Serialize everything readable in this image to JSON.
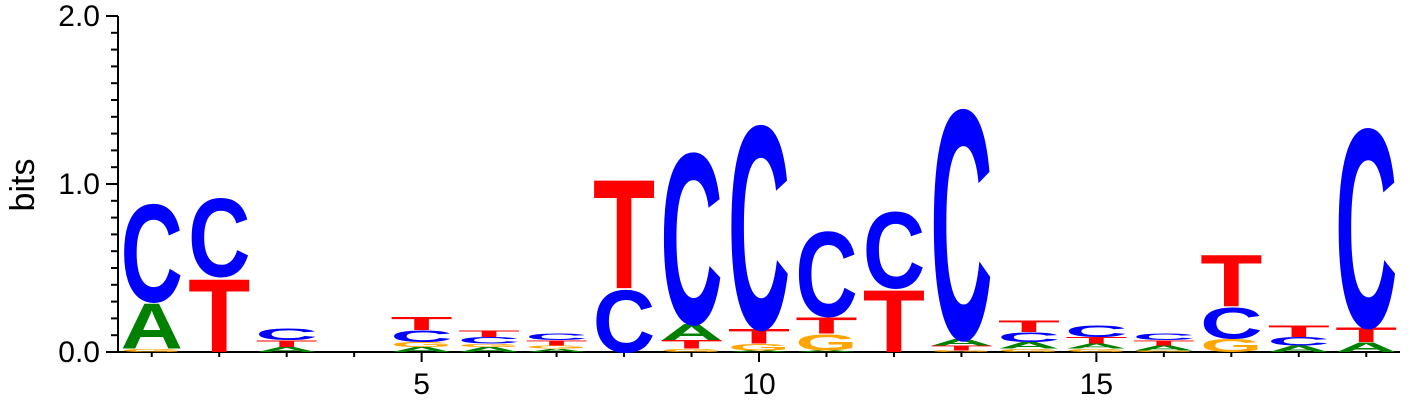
{
  "chart_data": {
    "type": "sequence-logo",
    "ylabel": "bits",
    "ylim": [
      0,
      2.0
    ],
    "xlim": [
      0.5,
      19.5
    ],
    "y_ticks": [
      "0.0",
      "1.0",
      "2.0"
    ],
    "y_tick_values": [
      0,
      1.0,
      2.0
    ],
    "x_ticks": [
      "5",
      "10",
      "15"
    ],
    "x_tick_values": [
      5,
      10,
      15
    ],
    "colors": {
      "A": "#008000",
      "C": "#0000ff",
      "G": "#ffa500",
      "T": "#ff0000"
    },
    "positions": [
      {
        "pos": 1,
        "letters": [
          {
            "base": "G",
            "height": 0.02
          },
          {
            "base": "A",
            "height": 0.28
          },
          {
            "base": "C",
            "height": 0.6
          }
        ]
      },
      {
        "pos": 2,
        "letters": [
          {
            "base": "T",
            "height": 0.45
          },
          {
            "base": "C",
            "height": 0.48
          }
        ]
      },
      {
        "pos": 3,
        "letters": [
          {
            "base": "A",
            "height": 0.03
          },
          {
            "base": "T",
            "height": 0.04
          },
          {
            "base": "C",
            "height": 0.07
          }
        ]
      },
      {
        "pos": 5,
        "letters": [
          {
            "base": "A",
            "height": 0.03
          },
          {
            "base": "G",
            "height": 0.03
          },
          {
            "base": "C",
            "height": 0.07
          },
          {
            "base": "T",
            "height": 0.08
          }
        ]
      },
      {
        "pos": 6,
        "letters": [
          {
            "base": "A",
            "height": 0.03
          },
          {
            "base": "G",
            "height": 0.02
          },
          {
            "base": "C",
            "height": 0.04
          },
          {
            "base": "T",
            "height": 0.04
          }
        ]
      },
      {
        "pos": 7,
        "letters": [
          {
            "base": "A",
            "height": 0.02
          },
          {
            "base": "G",
            "height": 0.02
          },
          {
            "base": "T",
            "height": 0.03
          },
          {
            "base": "C",
            "height": 0.04
          }
        ]
      },
      {
        "pos": 8,
        "letters": [
          {
            "base": "C",
            "height": 0.38
          },
          {
            "base": "T",
            "height": 0.67
          }
        ]
      },
      {
        "pos": 9,
        "letters": [
          {
            "base": "G",
            "height": 0.02
          },
          {
            "base": "T",
            "height": 0.05
          },
          {
            "base": "A",
            "height": 0.1
          },
          {
            "base": "C",
            "height": 1.05
          }
        ]
      },
      {
        "pos": 10,
        "letters": [
          {
            "base": "A",
            "height": 0.01
          },
          {
            "base": "G",
            "height": 0.04
          },
          {
            "base": "T",
            "height": 0.09
          },
          {
            "base": "C",
            "height": 1.25
          }
        ]
      },
      {
        "pos": 11,
        "letters": [
          {
            "base": "A",
            "height": 0.01
          },
          {
            "base": "G",
            "height": 0.1
          },
          {
            "base": "T",
            "height": 0.1
          },
          {
            "base": "C",
            "height": 0.52
          }
        ]
      },
      {
        "pos": 12,
        "letters": [
          {
            "base": "T",
            "height": 0.38
          },
          {
            "base": "C",
            "height": 0.47
          }
        ]
      },
      {
        "pos": 13,
        "letters": [
          {
            "base": "G",
            "height": 0.01
          },
          {
            "base": "T",
            "height": 0.03
          },
          {
            "base": "A",
            "height": 0.04
          },
          {
            "base": "C",
            "height": 1.41
          }
        ]
      },
      {
        "pos": 14,
        "letters": [
          {
            "base": "G",
            "height": 0.02
          },
          {
            "base": "A",
            "height": 0.04
          },
          {
            "base": "C",
            "height": 0.06
          },
          {
            "base": "T",
            "height": 0.07
          }
        ]
      },
      {
        "pos": 15,
        "letters": [
          {
            "base": "G",
            "height": 0.02
          },
          {
            "base": "A",
            "height": 0.03
          },
          {
            "base": "T",
            "height": 0.04
          },
          {
            "base": "C",
            "height": 0.07
          }
        ]
      },
      {
        "pos": 16,
        "letters": [
          {
            "base": "G",
            "height": 0.01
          },
          {
            "base": "A",
            "height": 0.03
          },
          {
            "base": "T",
            "height": 0.03
          },
          {
            "base": "C",
            "height": 0.04
          }
        ]
      },
      {
        "pos": 17,
        "letters": [
          {
            "base": "G",
            "height": 0.08
          },
          {
            "base": "C",
            "height": 0.19
          },
          {
            "base": "T",
            "height": 0.32
          }
        ]
      },
      {
        "pos": 18,
        "letters": [
          {
            "base": "A",
            "height": 0.04
          },
          {
            "base": "C",
            "height": 0.05
          },
          {
            "base": "T",
            "height": 0.07
          }
        ]
      },
      {
        "pos": 19,
        "letters": [
          {
            "base": "A",
            "height": 0.06
          },
          {
            "base": "T",
            "height": 0.09
          },
          {
            "base": "C",
            "height": 1.22
          }
        ]
      }
    ]
  }
}
